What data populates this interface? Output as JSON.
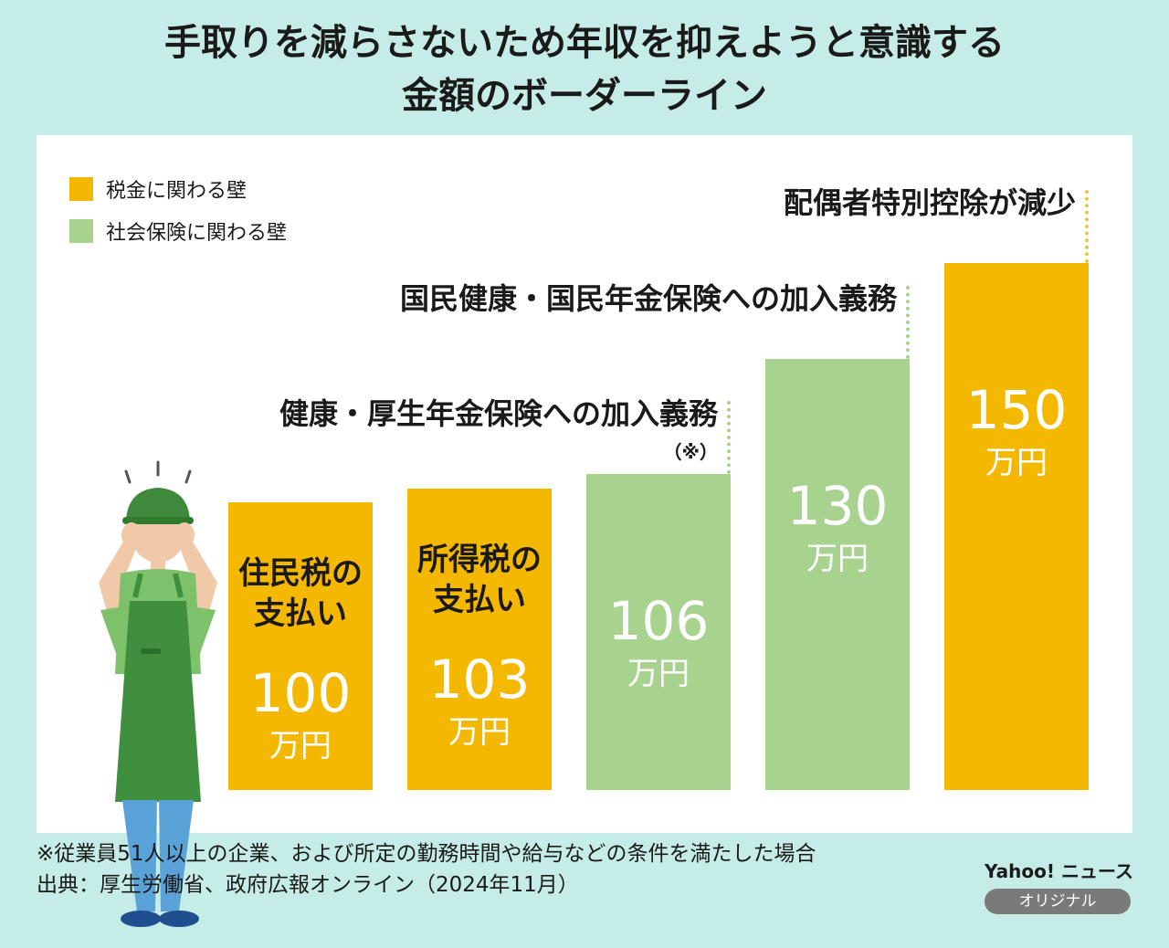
{
  "title": {
    "line1": "手取りを減らさないため年収を抑えようと意識する",
    "line2": "金額のボーダーライン"
  },
  "legend": [
    {
      "label": "税金に関わる壁",
      "color": "#f5b800"
    },
    {
      "label": "社会保険に関わる壁",
      "color": "#a8d38f"
    }
  ],
  "colors": {
    "tax": "#f5b800",
    "social": "#a8d38f",
    "background": "#c5ece6"
  },
  "chart_data": {
    "type": "bar",
    "title": "手取りを減らさないため年収を抑えようと意識する金額のボーダーライン",
    "categories": [
      "住民税の支払い",
      "所得税の支払い",
      "健康・厚生年金保険への加入義務",
      "国民健康・国民年金保険への加入義務",
      "配偶者特別控除が減少"
    ],
    "values": [
      100,
      103,
      106,
      130,
      150
    ],
    "unit": "万円",
    "value_labels": [
      "100",
      "103",
      "106",
      "130",
      "150"
    ],
    "groups": [
      "tax",
      "tax",
      "social",
      "social",
      "tax"
    ],
    "bar_descriptions": [
      {
        "line1": "住民税の",
        "line2": "支払い"
      },
      {
        "line1": "所得税の",
        "line2": "支払い"
      },
      null,
      null,
      null
    ],
    "annotations": [
      null,
      null,
      {
        "text": "健康・厚生年金保険への加入義務",
        "note": "（※）"
      },
      {
        "text": "国民健康・国民年金保険への加入義務",
        "note": ""
      },
      {
        "text": "配偶者特別控除が減少",
        "note": ""
      }
    ]
  },
  "footer": {
    "note": "※従業員51人以上の企業、および所定の勤務時間や給与などの条件を満たした場合",
    "source": "出典：厚生労働省、政府広報オンライン（2024年11月）"
  },
  "brand": {
    "name": "Yahoo! ニュース",
    "badge": "オリジナル"
  },
  "illustration": {
    "icon": "worried-worker-icon"
  }
}
